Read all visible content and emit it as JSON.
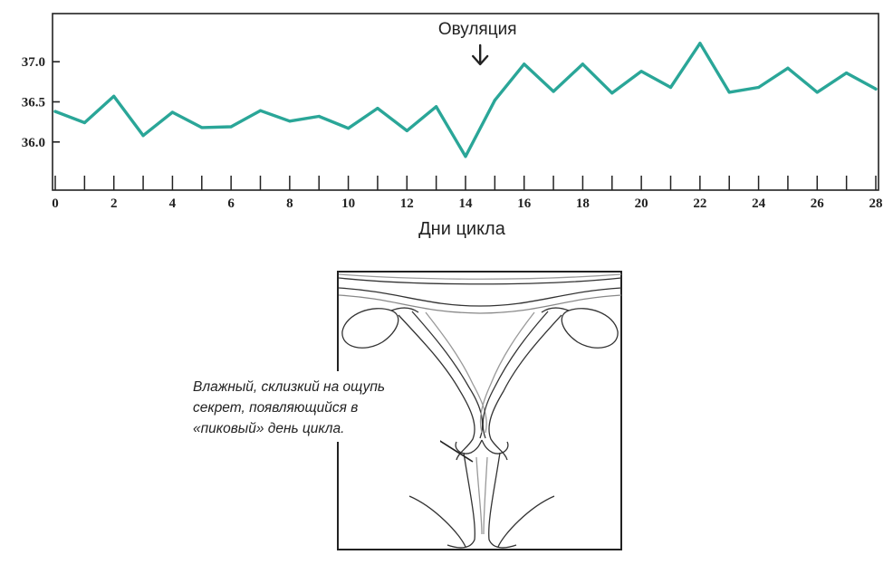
{
  "chart_data": {
    "type": "line",
    "xlabel": "Дни цикла",
    "ylabel": "",
    "title": "",
    "xlim": [
      0,
      28
    ],
    "ylim": [
      35.4,
      37.6
    ],
    "x_ticks": [
      0,
      2,
      4,
      6,
      8,
      10,
      12,
      14,
      16,
      18,
      20,
      22,
      24,
      26,
      28
    ],
    "y_ticks": [
      36.0,
      36.5,
      37.0
    ],
    "y_tick_labels": [
      "36.0",
      "36.5",
      "37.0"
    ],
    "grid": false,
    "line_color": "#2aa698",
    "series": [
      {
        "x": [
          0,
          1,
          2,
          3,
          4,
          5,
          6,
          7,
          8,
          9,
          10,
          11,
          12,
          13,
          14,
          15,
          16,
          17,
          18,
          19,
          20,
          21,
          22,
          23,
          24,
          25,
          26,
          27,
          28
        ],
        "values": [
          36.38,
          36.24,
          36.57,
          36.08,
          36.37,
          36.18,
          36.19,
          36.39,
          36.26,
          36.32,
          36.17,
          36.42,
          36.14,
          36.44,
          35.82,
          36.52,
          36.97,
          36.63,
          36.97,
          36.61,
          36.88,
          36.68,
          37.23,
          36.62,
          36.68,
          36.92,
          36.62,
          36.86,
          36.66
        ]
      }
    ],
    "annotations": [
      {
        "text": "Овуляция",
        "x": 14.5
      }
    ]
  },
  "diagram": {
    "caption_lines": [
      "Влажный, склизкий на ощупь",
      "секрет, появляющийся в",
      "«пиковый» день цикла."
    ]
  }
}
